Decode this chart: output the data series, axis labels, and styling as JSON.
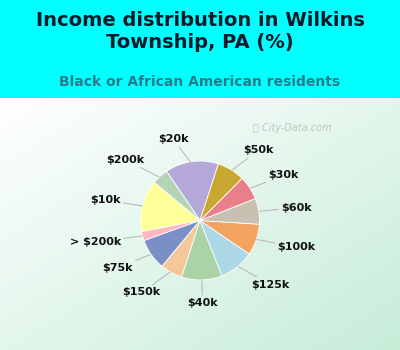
{
  "title": "Income distribution in Wilkins\nTownship, PA (%)",
  "subtitle": "Black or African American residents",
  "labels": [
    "$20k",
    "$200k",
    "$10k",
    "> $200k",
    "$75k",
    "$150k",
    "$40k",
    "$125k",
    "$100k",
    "$60k",
    "$30k",
    "$50k"
  ],
  "values": [
    14.5,
    4.5,
    14.0,
    2.5,
    8.5,
    6.0,
    11.0,
    9.5,
    8.5,
    7.0,
    6.5,
    7.5
  ],
  "colors": [
    "#b3a8d8",
    "#b5d4b5",
    "#ffff99",
    "#ffb6c1",
    "#7b8fc7",
    "#f4c89a",
    "#aad4a8",
    "#add8e6",
    "#f4a460",
    "#c8c0b0",
    "#e8808a",
    "#c8a830"
  ],
  "bg_outer": "#00ffff",
  "bg_inner_top": "#ffffff",
  "bg_inner_bottom": "#c8e8d8",
  "watermark": "City-Data.com",
  "startangle": 72,
  "title_fontsize": 14,
  "subtitle_fontsize": 10,
  "label_fontsize": 8,
  "title_color": "#0a1a2a",
  "subtitle_color": "#2a7a8a",
  "label_color": "#111111"
}
